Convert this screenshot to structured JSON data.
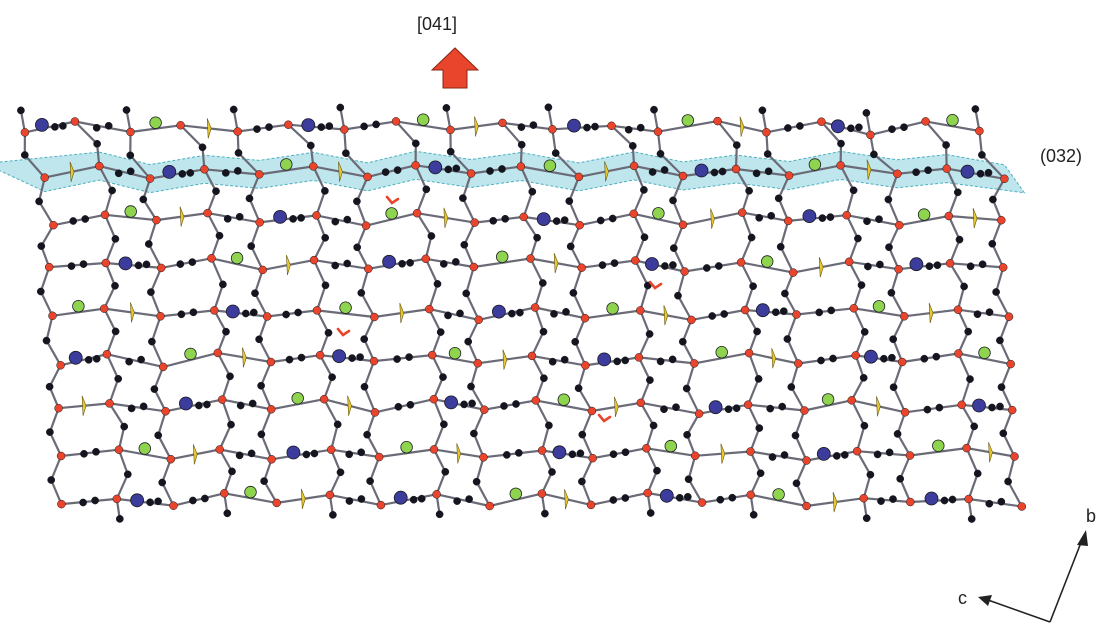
{
  "labels": {
    "direction": "[041]",
    "plane": "(032)",
    "axis_b": "b",
    "axis_c": "c"
  },
  "colors": {
    "background": "#ffffff",
    "bond": "#6b6b78",
    "carbon": "#151520",
    "oxygen": "#e8452c",
    "green_atom": "#8fd44e",
    "blue_atom": "#3c3c9c",
    "yellow_atom": "#e8c830",
    "highlight": "#8ad2dc",
    "arrow": "#e8452c",
    "axis": "#222222"
  },
  "icons": {
    "direction_arrow": "arrow-up-icon",
    "axes": "crystal-axes-icon",
    "marker": "chevron-marker-icon"
  }
}
